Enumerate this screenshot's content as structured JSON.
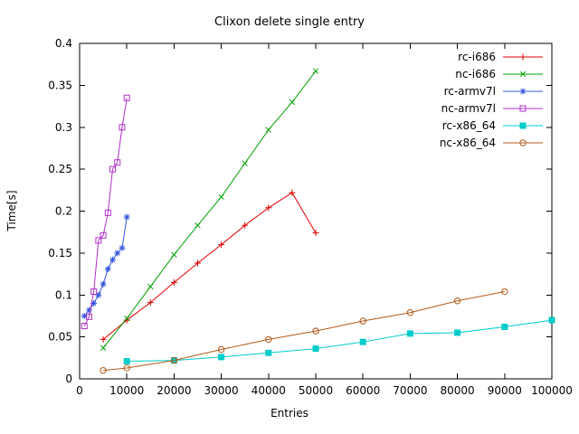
{
  "page": {
    "background": "#ffffff"
  },
  "chart_data": {
    "type": "line",
    "title": "Clixon delete single entry",
    "xlabel": "Entries",
    "ylabel": "Time[s]",
    "xlim": [
      0,
      100000
    ],
    "ylim": [
      0,
      0.4
    ],
    "grid": false,
    "legend_position": "top-right-inside",
    "xticks": [
      0,
      10000,
      20000,
      30000,
      40000,
      50000,
      60000,
      70000,
      80000,
      90000,
      100000
    ],
    "xtick_labels": [
      "0",
      "10000",
      "20000",
      "30000",
      "40000",
      "50000",
      "60000",
      "70000",
      "80000",
      "90000",
      "100000"
    ],
    "yticks": [
      0,
      0.05,
      0.1,
      0.15,
      0.2,
      0.25,
      0.3,
      0.35,
      0.4
    ],
    "ytick_labels": [
      "0",
      "0.05",
      "0.1",
      "0.15",
      "0.2",
      "0.25",
      "0.3",
      "0.35",
      "0.4"
    ],
    "series": [
      {
        "name": "rc-i686",
        "color": "#e00000",
        "marker": "plus",
        "x": [
          5000,
          10000,
          15000,
          20000,
          25000,
          30000,
          35000,
          40000,
          45000,
          50000
        ],
        "y": [
          0.047,
          0.07,
          0.091,
          0.115,
          0.138,
          0.16,
          0.183,
          0.204,
          0.222,
          0.174
        ]
      },
      {
        "name": "nc-i686",
        "color": "#00a000",
        "marker": "cross",
        "x": [
          5000,
          10000,
          15000,
          20000,
          25000,
          30000,
          35000,
          40000,
          45000,
          50000
        ],
        "y": [
          0.037,
          0.072,
          0.11,
          0.148,
          0.183,
          0.217,
          0.257,
          0.297,
          0.33,
          0.367
        ]
      },
      {
        "name": "rc-armv7l",
        "color": "#3355dd",
        "marker": "asterisk",
        "x": [
          1000,
          2000,
          3000,
          4000,
          5000,
          6000,
          7000,
          8000,
          9000,
          10000
        ],
        "y": [
          0.075,
          0.082,
          0.09,
          0.1,
          0.113,
          0.131,
          0.142,
          0.15,
          0.156,
          0.193
        ]
      },
      {
        "name": "nc-armv7l",
        "color": "#b030c8",
        "marker": "square-open",
        "x": [
          1000,
          2000,
          3000,
          4000,
          5000,
          6000,
          7000,
          8000,
          9000,
          10000
        ],
        "y": [
          0.063,
          0.074,
          0.104,
          0.165,
          0.171,
          0.198,
          0.25,
          0.258,
          0.3,
          0.335
        ]
      },
      {
        "name": "rc-x86_64",
        "color": "#00cccc",
        "marker": "square-filled",
        "x": [
          10000,
          20000,
          30000,
          40000,
          50000,
          60000,
          70000,
          80000,
          90000,
          100000
        ],
        "y": [
          0.021,
          0.022,
          0.026,
          0.031,
          0.036,
          0.044,
          0.054,
          0.055,
          0.062,
          0.07
        ]
      },
      {
        "name": "nc-x86_64",
        "color": "#b35a1a",
        "marker": "circle-open",
        "x": [
          5000,
          10000,
          20000,
          30000,
          40000,
          50000,
          60000,
          70000,
          80000,
          90000
        ],
        "y": [
          0.01,
          0.013,
          0.022,
          0.035,
          0.047,
          0.057,
          0.069,
          0.079,
          0.093,
          0.104
        ]
      }
    ]
  }
}
